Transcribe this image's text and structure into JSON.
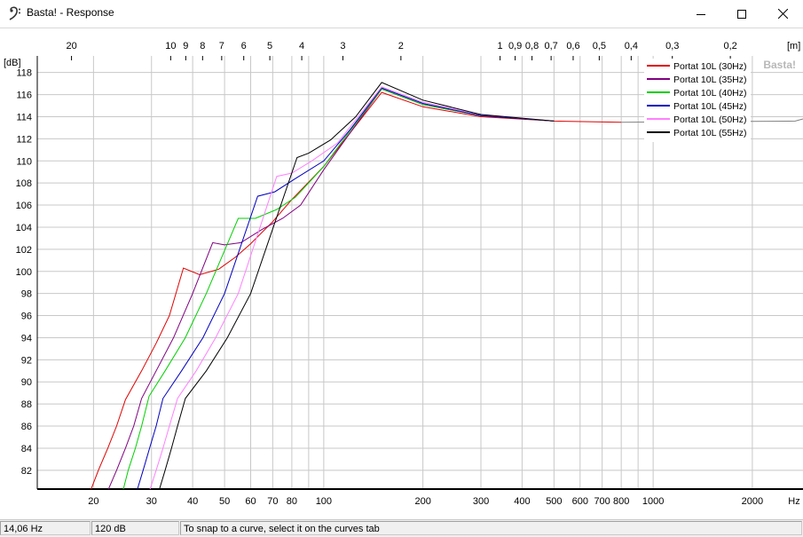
{
  "window": {
    "title": "Basta! - Response",
    "icon": "bass-clef-icon",
    "controls": [
      "minimize-icon",
      "maximize-icon",
      "close-icon"
    ]
  },
  "statusbar": {
    "frequency": "14,06 Hz",
    "level": "120 dB",
    "message": "To snap to a curve, select it on the curves tab"
  },
  "watermark": "Basta!",
  "chart_data": {
    "type": "line",
    "xscale": "log",
    "xlim": [
      13.5,
      2850
    ],
    "ylim": [
      80.3,
      119.5
    ],
    "grid": true,
    "legend_position": "top-right",
    "y_unit_label": "[dB]",
    "x_unit_label": "Hz",
    "top_unit_label": "[m]",
    "y_ticks": [
      82,
      84,
      86,
      88,
      90,
      92,
      94,
      96,
      98,
      100,
      102,
      104,
      106,
      108,
      110,
      112,
      114,
      116,
      118
    ],
    "x_ticks": [
      {
        "v": 20,
        "label": "20"
      },
      {
        "v": 30,
        "label": "30"
      },
      {
        "v": 40,
        "label": "40"
      },
      {
        "v": 50,
        "label": "50"
      },
      {
        "v": 60,
        "label": "60"
      },
      {
        "v": 70,
        "label": "70"
      },
      {
        "v": 80,
        "label": "80"
      },
      {
        "v": 90,
        "label": ""
      },
      {
        "v": 100,
        "label": "100"
      },
      {
        "v": 200,
        "label": "200"
      },
      {
        "v": 300,
        "label": "300"
      },
      {
        "v": 400,
        "label": "400"
      },
      {
        "v": 500,
        "label": "500"
      },
      {
        "v": 600,
        "label": "600"
      },
      {
        "v": 700,
        "label": "700"
      },
      {
        "v": 800,
        "label": "800"
      },
      {
        "v": 900,
        "label": ""
      },
      {
        "v": 1000,
        "label": "1000"
      },
      {
        "v": 2000,
        "label": "2000"
      }
    ],
    "top_ticks": [
      {
        "label": "20"
      },
      {
        "label": "10"
      },
      {
        "label": "9"
      },
      {
        "label": "8"
      },
      {
        "label": "7"
      },
      {
        "label": "6"
      },
      {
        "label": "5"
      },
      {
        "label": "4"
      },
      {
        "label": "3"
      },
      {
        "label": "2"
      },
      {
        "label": "1"
      },
      {
        "label": "0,9"
      },
      {
        "label": "0,8"
      },
      {
        "label": "0,7"
      },
      {
        "label": "0,6"
      },
      {
        "label": "0,5"
      },
      {
        "label": "0,4"
      },
      {
        "label": "0,3"
      },
      {
        "label": "0,2"
      }
    ],
    "series": [
      {
        "name": "Portat 10L (30Hz)",
        "color": "#e00000",
        "points": [
          [
            19.5,
            80
          ],
          [
            20.7,
            82
          ],
          [
            22.1,
            84
          ],
          [
            23.5,
            86
          ],
          [
            25,
            88.4
          ],
          [
            28,
            91
          ],
          [
            31,
            93.5
          ],
          [
            34,
            96
          ],
          [
            37.5,
            100.3
          ],
          [
            42,
            99.7
          ],
          [
            48,
            100.2
          ],
          [
            54,
            101.3
          ],
          [
            60,
            102.5
          ],
          [
            70,
            104.5
          ],
          [
            80,
            106.5
          ],
          [
            100,
            109.5
          ],
          [
            120,
            112.5
          ],
          [
            150,
            116.2
          ],
          [
            200,
            114.9
          ],
          [
            300,
            114
          ],
          [
            500,
            113.6
          ],
          [
            800,
            113.5
          ]
        ]
      },
      {
        "name": "Portat 10L (35Hz)",
        "color": "#800080",
        "points": [
          [
            22,
            80
          ],
          [
            23.5,
            82
          ],
          [
            25,
            84
          ],
          [
            26.5,
            86
          ],
          [
            28,
            88.5
          ],
          [
            31,
            91
          ],
          [
            35,
            94
          ],
          [
            40,
            98
          ],
          [
            46,
            102.6
          ],
          [
            50,
            102.4
          ],
          [
            56,
            102.6
          ],
          [
            65,
            103.8
          ],
          [
            75,
            104.8
          ],
          [
            85,
            106
          ],
          [
            100,
            109.2
          ],
          [
            120,
            112.5
          ],
          [
            150,
            116.5
          ],
          [
            200,
            115.1
          ],
          [
            300,
            114.1
          ],
          [
            500,
            113.6
          ]
        ]
      },
      {
        "name": "Portat 10L (40Hz)",
        "color": "#00d000",
        "points": [
          [
            24.5,
            80
          ],
          [
            25.5,
            82
          ],
          [
            26.8,
            84
          ],
          [
            28,
            86
          ],
          [
            29.5,
            88.7
          ],
          [
            33,
            91
          ],
          [
            38,
            94
          ],
          [
            44,
            98
          ],
          [
            55,
            104.8
          ],
          [
            62,
            104.8
          ],
          [
            72,
            105.6
          ],
          [
            82,
            106.7
          ],
          [
            100,
            109.5
          ],
          [
            120,
            112.7
          ],
          [
            150,
            116.5
          ],
          [
            200,
            115.1
          ],
          [
            300,
            114.1
          ],
          [
            500,
            113.6
          ]
        ]
      },
      {
        "name": "Portat 10L (45Hz)",
        "color": "#0000c0",
        "points": [
          [
            27,
            80
          ],
          [
            28.3,
            82
          ],
          [
            29.6,
            84
          ],
          [
            31,
            86
          ],
          [
            32.5,
            88.5
          ],
          [
            37,
            91
          ],
          [
            43,
            94
          ],
          [
            50,
            98
          ],
          [
            63,
            106.8
          ],
          [
            71,
            107.2
          ],
          [
            82,
            108.4
          ],
          [
            100,
            110
          ],
          [
            120,
            112.8
          ],
          [
            150,
            116.6
          ],
          [
            200,
            115.2
          ],
          [
            300,
            114.1
          ],
          [
            500,
            113.6
          ]
        ]
      },
      {
        "name": "Portat 10L (50Hz)",
        "color": "#ff80ff",
        "points": [
          [
            29.5,
            80
          ],
          [
            31,
            82
          ],
          [
            32.5,
            84
          ],
          [
            34,
            86
          ],
          [
            36,
            88.5
          ],
          [
            41,
            91
          ],
          [
            47,
            94
          ],
          [
            55,
            98
          ],
          [
            72,
            108.6
          ],
          [
            80,
            108.9
          ],
          [
            92,
            110
          ],
          [
            110,
            111.6
          ],
          [
            150,
            116.7
          ],
          [
            200,
            115.3
          ],
          [
            300,
            114.2
          ],
          [
            500,
            113.6
          ]
        ]
      },
      {
        "name": "Portat 10L (55Hz)",
        "color": "#000000",
        "points": [
          [
            31.5,
            80
          ],
          [
            33,
            82
          ],
          [
            34.5,
            84
          ],
          [
            36,
            86
          ],
          [
            38,
            88.5
          ],
          [
            44,
            91
          ],
          [
            51,
            94
          ],
          [
            60,
            98
          ],
          [
            83,
            110.3
          ],
          [
            90,
            110.7
          ],
          [
            105,
            111.9
          ],
          [
            125,
            114
          ],
          [
            150,
            117.1
          ],
          [
            200,
            115.5
          ],
          [
            300,
            114.2
          ],
          [
            500,
            113.6
          ]
        ]
      }
    ],
    "flat_line": {
      "color": "#808080",
      "points": [
        [
          800,
          113.5
        ],
        [
          2700,
          113.6
        ],
        [
          2850,
          113.8
        ]
      ]
    }
  }
}
